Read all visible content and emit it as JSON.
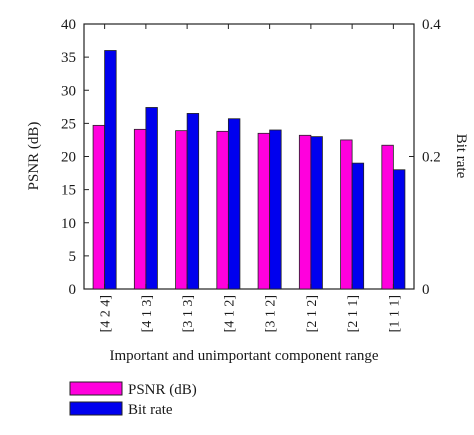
{
  "chart_data": {
    "type": "bar",
    "title": "",
    "xlabel": "Important and unimportant component range",
    "ylabel_left": "PSNR (dB)",
    "ylabel_right": "Bit rate",
    "categories": [
      "[4 2 4]",
      "[4 1 3]",
      "[3 1 3]",
      "[4 1 2]",
      "[3 1 2]",
      "[2 1 2]",
      "[2 1 1]",
      "[1 1 1]"
    ],
    "ylim_left": [
      0,
      40
    ],
    "yticks_left": [
      "0",
      "5",
      "10",
      "15",
      "20",
      "25",
      "30",
      "35",
      "40"
    ],
    "ylim_right": [
      0,
      0.4
    ],
    "yticks_right": [
      "0",
      "0.2",
      "0.4"
    ],
    "grid": false,
    "legend_position": "bottom-left",
    "series": [
      {
        "name": "PSNR (dB)",
        "axis": "left",
        "color": "#ff00dd",
        "values": [
          24.7,
          24.1,
          23.9,
          23.8,
          23.5,
          23.2,
          22.5,
          21.7
        ]
      },
      {
        "name": "Bit rate",
        "axis": "right",
        "color": "#0000ee",
        "values": [
          0.36,
          0.274,
          0.265,
          0.257,
          0.24,
          0.23,
          0.19,
          0.18
        ]
      }
    ]
  }
}
